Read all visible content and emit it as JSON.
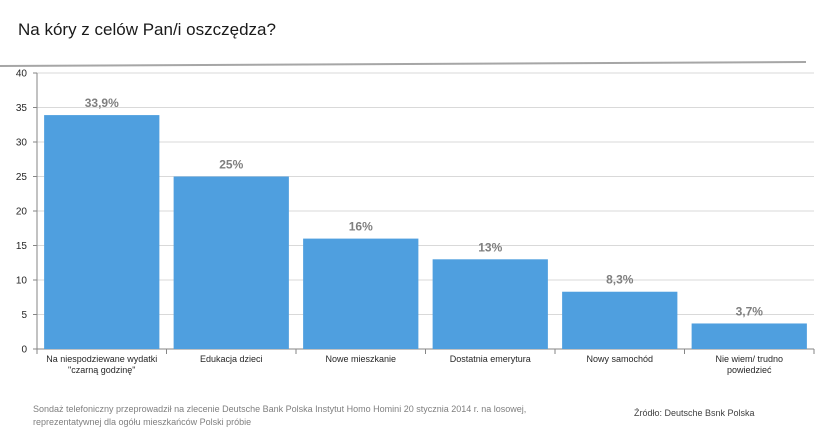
{
  "chart_data": {
    "type": "bar",
    "title": "Na kóry z celów Pan/i oszczędza?",
    "categories": [
      [
        "Na niespodziewane wydatki",
        "\"czarną godzinę\""
      ],
      [
        "Edukacja dzieci"
      ],
      [
        "Nowe mieszkanie"
      ],
      [
        "Dostatnia emerytura"
      ],
      [
        "Nowy samochód"
      ],
      [
        "Nie wiem/ trudno",
        "powiedzieć"
      ]
    ],
    "values": [
      33.9,
      25,
      16,
      13,
      8.3,
      3.7
    ],
    "data_labels": [
      "33,9%",
      "25%",
      "16%",
      "13%",
      "8,3%",
      "3,7%"
    ],
    "ylim": [
      0,
      40
    ],
    "y_ticks": [
      0,
      5,
      10,
      15,
      20,
      25,
      30,
      35,
      40
    ],
    "grid": true,
    "legend": "none",
    "bar_color": "#4f9fdf",
    "label_color": "#7f7f7f"
  },
  "footnote": "Sondaż telefoniczny przeprowadził na zlecenie Deutsche Bank Polska Instytut Homo Homini 20 stycznia 2014  r. na losowej, reprezentatywnej dla  ogółu mieszkańców Polski próbie",
  "source": "Źródło: Deutsche Bsnk Polska"
}
